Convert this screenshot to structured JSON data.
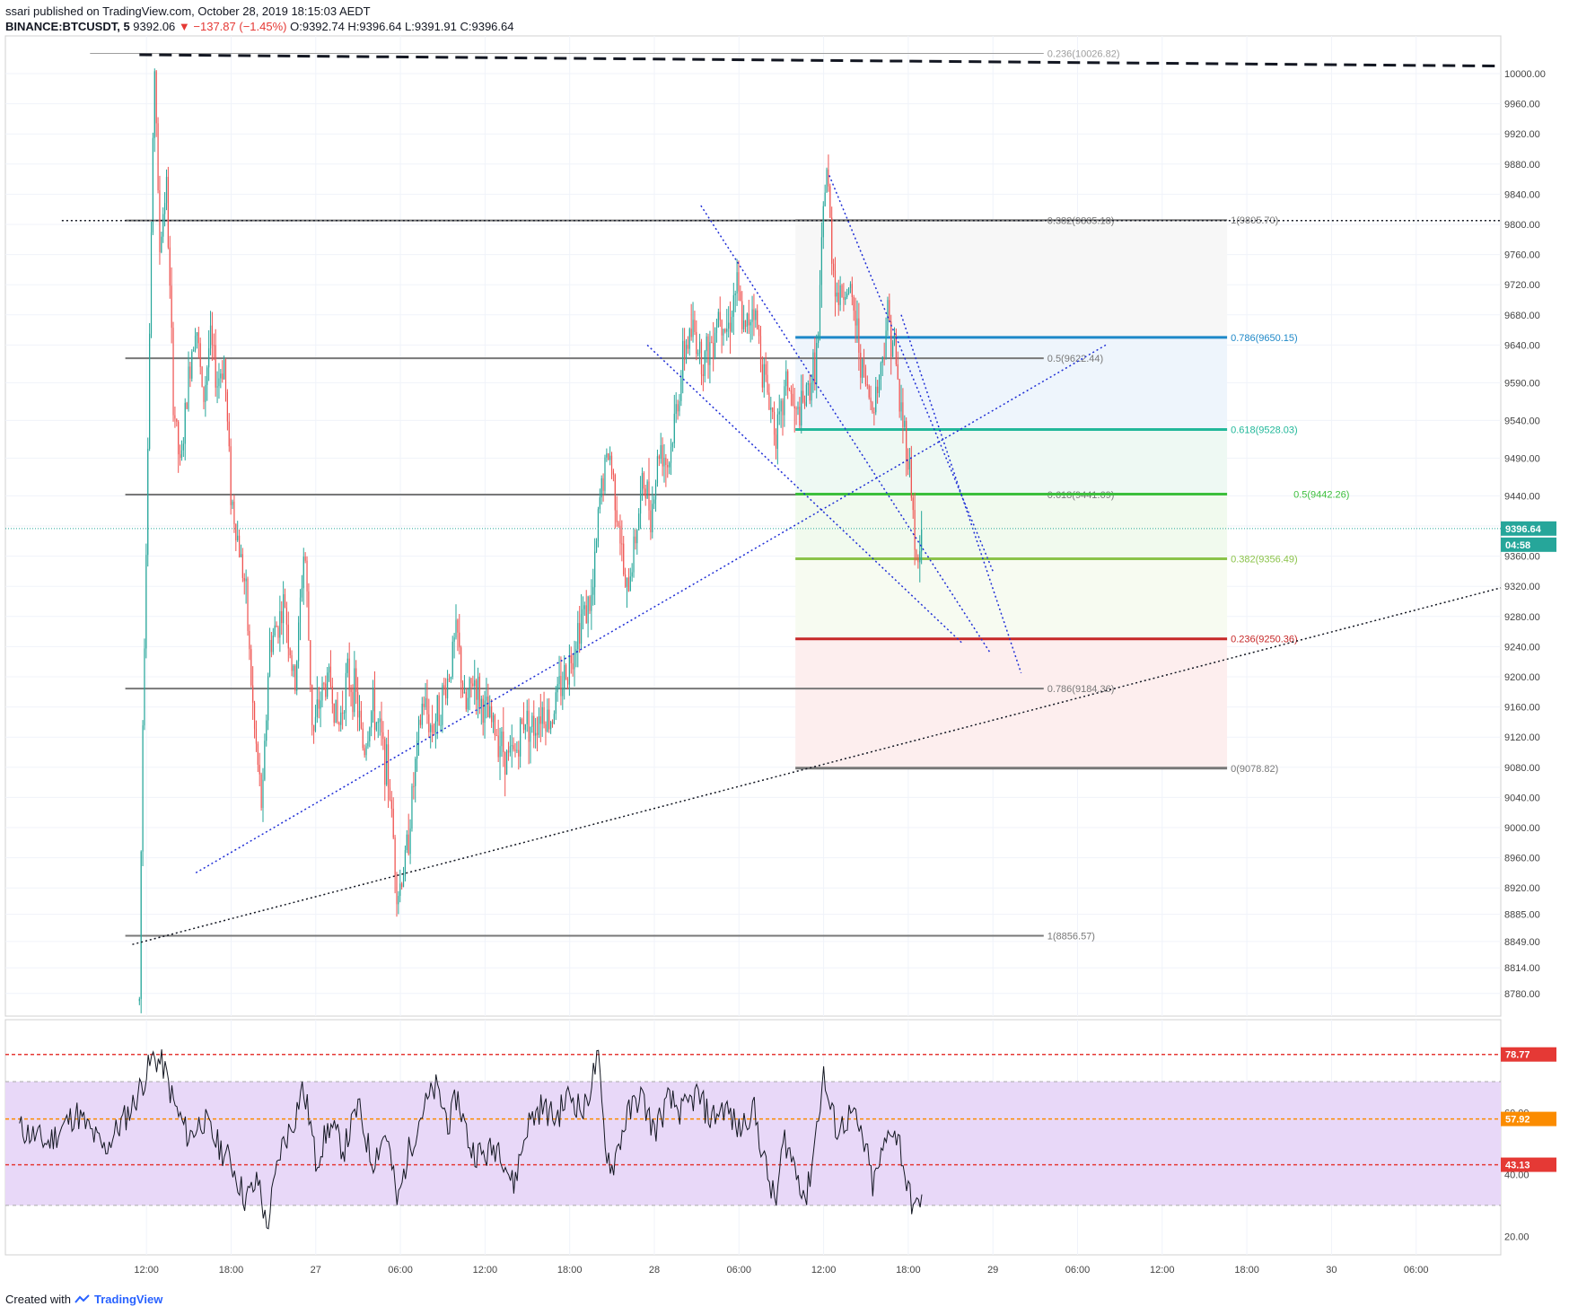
{
  "header": {
    "line1": "ssari published on TradingView.com, October 28, 2019 18:15:03 AEDT",
    "symbol": "BINANCE:BTCUSDT, 5",
    "last": "9392.06",
    "change": "▼ −137.87 (−1.45%)",
    "ohlc": "O:9392.74 H:9396.64 L:9391.91 C:9396.64"
  },
  "footer": {
    "created_with": "Created with",
    "brand": "TradingView"
  },
  "colors": {
    "up": "#26a69a",
    "down": "#ef5350",
    "trend_blue": "#1f2ed6",
    "fib_blue": "#1e88c8",
    "fib_teal": "#22b89a",
    "fib_green": "#3cbf3c",
    "fib_lime": "#8bc34a",
    "fib_red": "#c62828",
    "fib_gray": "#787878",
    "rsi_line": "#131722",
    "rsi_band": "#e8d8f8"
  },
  "chart_data": [
    {
      "type": "candlestick",
      "title": "",
      "ylim": [
        8750,
        10050
      ],
      "y_ticks": [
        "10000.00",
        "9960.00",
        "9920.00",
        "9880.00",
        "9840.00",
        "9800.00",
        "9760.00",
        "9720.00",
        "9680.00",
        "9640.00",
        "9590.00",
        "9540.00",
        "9490.00",
        "9440.00",
        "9400.00",
        "9360.00",
        "9320.00",
        "9280.00",
        "9240.00",
        "9200.00",
        "9160.00",
        "9120.00",
        "9080.00",
        "9040.00",
        "9000.00",
        "8960.00",
        "8920.00",
        "8885.00",
        "8849.00",
        "8814.00",
        "8780.00"
      ],
      "x_ticks": [
        "12:00",
        "18:00",
        "27",
        "06:00",
        "12:00",
        "18:00",
        "28",
        "06:00",
        "12:00",
        "18:00",
        "29",
        "06:00",
        "12:00",
        "18:00",
        "30",
        "06:00"
      ],
      "x_ticks_hours": [
        0,
        6,
        12,
        18,
        24,
        30,
        36,
        42,
        48,
        54,
        60,
        66,
        72,
        78,
        84,
        90
      ],
      "last_price": "9396.64",
      "countdown": "04:58",
      "price_path": [
        [
          -0.5,
          8770
        ],
        [
          -0.3,
          9100
        ],
        [
          0.0,
          9400
        ],
        [
          0.3,
          9750
        ],
        [
          0.6,
          10030
        ],
        [
          0.9,
          9760
        ],
        [
          1.4,
          9860
        ],
        [
          1.9,
          9570
        ],
        [
          2.4,
          9470
        ],
        [
          3.0,
          9600
        ],
        [
          3.5,
          9680
        ],
        [
          4.0,
          9560
        ],
        [
          4.5,
          9650
        ],
        [
          5.0,
          9590
        ],
        [
          5.5,
          9620
        ],
        [
          6.0,
          9440
        ],
        [
          6.5,
          9380
        ],
        [
          7.0,
          9320
        ],
        [
          7.6,
          9140
        ],
        [
          8.2,
          9020
        ],
        [
          8.7,
          9240
        ],
        [
          9.3,
          9270
        ],
        [
          9.8,
          9300
        ],
        [
          10.5,
          9180
        ],
        [
          11.2,
          9380
        ],
        [
          11.8,
          9120
        ],
        [
          12.4,
          9180
        ],
        [
          13.0,
          9200
        ],
        [
          13.6,
          9130
        ],
        [
          14.2,
          9200
        ],
        [
          14.8,
          9180
        ],
        [
          15.4,
          9100
        ],
        [
          16.0,
          9160
        ],
        [
          16.6,
          9120
        ],
        [
          17.2,
          9060
        ],
        [
          17.8,
          8910
        ],
        [
          18.4,
          8960
        ],
        [
          19.0,
          9070
        ],
        [
          19.6,
          9170
        ],
        [
          20.2,
          9130
        ],
        [
          20.8,
          9160
        ],
        [
          21.4,
          9200
        ],
        [
          22.0,
          9260
        ],
        [
          22.6,
          9150
        ],
        [
          23.2,
          9200
        ],
        [
          23.8,
          9160
        ],
        [
          24.4,
          9140
        ],
        [
          25.0,
          9120
        ],
        [
          25.6,
          9090
        ],
        [
          26.2,
          9100
        ],
        [
          26.8,
          9150
        ],
        [
          27.4,
          9130
        ],
        [
          28.0,
          9160
        ],
        [
          28.6,
          9140
        ],
        [
          29.2,
          9180
        ],
        [
          30.0,
          9220
        ],
        [
          30.8,
          9280
        ],
        [
          31.6,
          9300
        ],
        [
          32.2,
          9450
        ],
        [
          32.8,
          9500
        ],
        [
          33.4,
          9420
        ],
        [
          34.0,
          9300
        ],
        [
          34.6,
          9380
        ],
        [
          35.2,
          9460
        ],
        [
          35.8,
          9420
        ],
        [
          36.4,
          9510
        ],
        [
          37.0,
          9480
        ],
        [
          37.6,
          9560
        ],
        [
          38.2,
          9640
        ],
        [
          38.8,
          9660
        ],
        [
          39.4,
          9620
        ],
        [
          40.0,
          9640
        ],
        [
          40.6,
          9690
        ],
        [
          41.2,
          9660
        ],
        [
          41.8,
          9720
        ],
        [
          42.4,
          9650
        ],
        [
          43.0,
          9700
        ],
        [
          43.6,
          9620
        ],
        [
          44.2,
          9560
        ],
        [
          44.8,
          9520
        ],
        [
          45.4,
          9600
        ],
        [
          46.0,
          9540
        ],
        [
          46.6,
          9560
        ],
        [
          47.2,
          9600
        ],
        [
          47.6,
          9640
        ],
        [
          48.0,
          9820
        ],
        [
          48.2,
          9880
        ],
        [
          48.6,
          9760
        ],
        [
          49.0,
          9700
        ],
        [
          49.6,
          9720
        ],
        [
          50.2,
          9680
        ],
        [
          50.8,
          9600
        ],
        [
          51.4,
          9560
        ],
        [
          52.0,
          9600
        ],
        [
          52.5,
          9680
        ],
        [
          53.0,
          9640
        ],
        [
          53.4,
          9560
        ],
        [
          53.8,
          9520
        ],
        [
          54.2,
          9460
        ],
        [
          54.6,
          9340
        ],
        [
          54.8,
          9360
        ],
        [
          55.0,
          9396.64
        ]
      ],
      "fib_levels": [
        {
          "label": "0.236(10026.82)",
          "value": 10026.82,
          "color": "#9e9e9e"
        },
        {
          "label": "0.382(9805.18)",
          "value": 9805.18,
          "color": "#787878"
        },
        {
          "label": "1(9805.70)",
          "value": 9805.7,
          "color": "#787878"
        },
        {
          "label": "0.786(9650.15)",
          "value": 9650.15,
          "color": "#1e88c8"
        },
        {
          "label": "0.5(9622.44)",
          "value": 9622.44,
          "color": "#787878"
        },
        {
          "label": "0.618(9528.03)",
          "value": 9528.03,
          "color": "#22b89a"
        },
        {
          "label": "0.618(9441.69)",
          "value": 9441.69,
          "color": "#787878"
        },
        {
          "label": "0.5(9442.26)",
          "value": 9442.26,
          "color": "#3cbf3c"
        },
        {
          "label": "0.382(9356.49)",
          "value": 9356.49,
          "color": "#8bc34a"
        },
        {
          "label": "0.236(9250.36)",
          "value": 9250.36,
          "color": "#c62828"
        },
        {
          "label": "0.786(9184.36)",
          "value": 9184.36,
          "color": "#787878"
        },
        {
          "label": "0(9078.82)",
          "value": 9078.82,
          "color": "#787878"
        },
        {
          "label": "1(8856.57)",
          "value": 8856.57,
          "color": "#787878"
        }
      ]
    },
    {
      "type": "line",
      "title": "",
      "ylim": [
        14,
        90
      ],
      "y_ticks": [
        "20.00",
        "40.00",
        "60.00"
      ],
      "levels": [
        {
          "label": "78.77",
          "value": 78.77,
          "color": "#e53935"
        },
        {
          "label": "57.92",
          "value": 57.92,
          "color": "#fb8c00"
        },
        {
          "label": "43.13",
          "value": 43.13,
          "color": "#e53935"
        }
      ],
      "band": [
        30,
        70
      ],
      "rsi_path": [
        [
          -9,
          55
        ],
        [
          -7,
          50
        ],
        [
          -5,
          60
        ],
        [
          -3,
          48
        ],
        [
          -1,
          62
        ],
        [
          0.5,
          78
        ],
        [
          1.2,
          75
        ],
        [
          2,
          62
        ],
        [
          3,
          52
        ],
        [
          4,
          58
        ],
        [
          5,
          50
        ],
        [
          6,
          44
        ],
        [
          7,
          32
        ],
        [
          8,
          38
        ],
        [
          8.5,
          22
        ],
        [
          9.5,
          48
        ],
        [
          10.5,
          58
        ],
        [
          11,
          68
        ],
        [
          11.5,
          60
        ],
        [
          12,
          44
        ],
        [
          13,
          56
        ],
        [
          14,
          48
        ],
        [
          15,
          62
        ],
        [
          16,
          44
        ],
        [
          17,
          54
        ],
        [
          17.8,
          30
        ],
        [
          18.5,
          46
        ],
        [
          19.5,
          60
        ],
        [
          20.5,
          68
        ],
        [
          21.5,
          56
        ],
        [
          22,
          66
        ],
        [
          23,
          48
        ],
        [
          24,
          46
        ],
        [
          25,
          50
        ],
        [
          26,
          36
        ],
        [
          27,
          56
        ],
        [
          28,
          62
        ],
        [
          29,
          58
        ],
        [
          30,
          66
        ],
        [
          31,
          60
        ],
        [
          32,
          78
        ],
        [
          32.5,
          50
        ],
        [
          33,
          42
        ],
        [
          34,
          58
        ],
        [
          35,
          66
        ],
        [
          36,
          54
        ],
        [
          37,
          64
        ],
        [
          38,
          60
        ],
        [
          39,
          66
        ],
        [
          40,
          58
        ],
        [
          41,
          62
        ],
        [
          42,
          54
        ],
        [
          43,
          62
        ],
        [
          44,
          40
        ],
        [
          44.6,
          30
        ],
        [
          45.2,
          52
        ],
        [
          46,
          42
        ],
        [
          46.8,
          32
        ],
        [
          47.4,
          52
        ],
        [
          48,
          72
        ],
        [
          48.4,
          62
        ],
        [
          49,
          54
        ],
        [
          50,
          60
        ],
        [
          51,
          48
        ],
        [
          51.5,
          36
        ],
        [
          52,
          44
        ],
        [
          52.8,
          56
        ],
        [
          53.4,
          50
        ],
        [
          54,
          34
        ],
        [
          54.6,
          28
        ],
        [
          55,
          36
        ]
      ]
    }
  ]
}
